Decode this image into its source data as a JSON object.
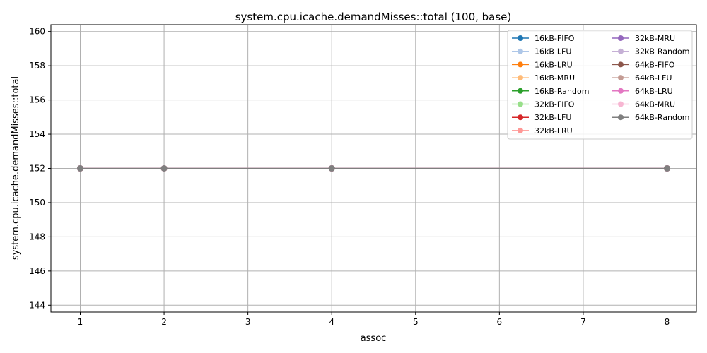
{
  "chart_data": {
    "type": "line",
    "title": "system.cpu.icache.demandMisses::total (100, base)",
    "xlabel": "assoc",
    "ylabel": "system.cpu.icache.demandMisses::total",
    "x": [
      1,
      2,
      4,
      8
    ],
    "xticks": [
      "1",
      "2",
      "3",
      "4",
      "5",
      "6",
      "7",
      "8"
    ],
    "yticks": [
      "144",
      "146",
      "148",
      "150",
      "152",
      "154",
      "156",
      "158",
      "160"
    ],
    "xlim": [
      0.65,
      8.35
    ],
    "ylim": [
      143.6,
      160.4
    ],
    "grid": true,
    "legend_position": "top-right",
    "series": [
      {
        "name": "16kB-FIFO",
        "color": "#1f77b4",
        "values": [
          152,
          152,
          152,
          152
        ]
      },
      {
        "name": "16kB-LFU",
        "color": "#aec7e8",
        "values": [
          152,
          152,
          152,
          152
        ]
      },
      {
        "name": "16kB-LRU",
        "color": "#ff7f0e",
        "values": [
          152,
          152,
          152,
          152
        ]
      },
      {
        "name": "16kB-MRU",
        "color": "#ffbb78",
        "values": [
          152,
          152,
          152,
          152
        ]
      },
      {
        "name": "16kB-Random",
        "color": "#2ca02c",
        "values": [
          152,
          152,
          152,
          152
        ]
      },
      {
        "name": "32kB-FIFO",
        "color": "#98df8a",
        "values": [
          152,
          152,
          152,
          152
        ]
      },
      {
        "name": "32kB-LFU",
        "color": "#d62728",
        "values": [
          152,
          152,
          152,
          152
        ]
      },
      {
        "name": "32kB-LRU",
        "color": "#ff9896",
        "values": [
          152,
          152,
          152,
          152
        ]
      },
      {
        "name": "32kB-MRU",
        "color": "#9467bd",
        "values": [
          152,
          152,
          152,
          152
        ]
      },
      {
        "name": "32kB-Random",
        "color": "#c5b0d5",
        "values": [
          152,
          152,
          152,
          152
        ]
      },
      {
        "name": "64kB-FIFO",
        "color": "#8c564b",
        "values": [
          152,
          152,
          152,
          152
        ]
      },
      {
        "name": "64kB-LFU",
        "color": "#c49c94",
        "values": [
          152,
          152,
          152,
          152
        ]
      },
      {
        "name": "64kB-LRU",
        "color": "#e377c2",
        "values": [
          152,
          152,
          152,
          152
        ]
      },
      {
        "name": "64kB-MRU",
        "color": "#f7b6d2",
        "values": [
          152,
          152,
          152,
          152
        ]
      },
      {
        "name": "64kB-Random",
        "color": "#7f7f7f",
        "values": [
          152,
          152,
          152,
          152
        ]
      }
    ]
  }
}
